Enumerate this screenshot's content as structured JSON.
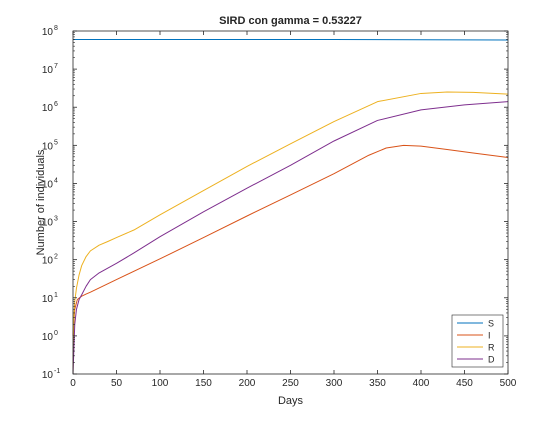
{
  "chart_data": {
    "type": "line",
    "title": "SIRD con gamma = 0.53227",
    "xlabel": "Days",
    "ylabel": "Number of individuals",
    "xlim": [
      0,
      500
    ],
    "ylim": [
      0.1,
      100000000
    ],
    "yscale": "log",
    "grid": false,
    "legend_position": "bottom-right",
    "x_ticks": [
      0,
      50,
      100,
      150,
      200,
      250,
      300,
      350,
      400,
      450,
      500
    ],
    "x_tick_labels": [
      "0",
      "50",
      "100",
      "150",
      "200",
      "250",
      "300",
      "350",
      "400",
      "450",
      "500"
    ],
    "y_ticks": [
      0.1,
      1,
      10,
      100,
      1000,
      10000,
      100000,
      1000000,
      10000000,
      100000000
    ],
    "y_tick_labels": [
      {
        "base": "10",
        "exp": "-1"
      },
      {
        "base": "10",
        "exp": "0"
      },
      {
        "base": "10",
        "exp": "1"
      },
      {
        "base": "10",
        "exp": "2"
      },
      {
        "base": "10",
        "exp": "3"
      },
      {
        "base": "10",
        "exp": "4"
      },
      {
        "base": "10",
        "exp": "5"
      },
      {
        "base": "10",
        "exp": "6"
      },
      {
        "base": "10",
        "exp": "7"
      },
      {
        "base": "10",
        "exp": "8"
      }
    ],
    "series": [
      {
        "name": "S",
        "color": "#0072BD",
        "x": [
          0,
          100,
          200,
          300,
          400,
          500
        ],
        "y": [
          60000000,
          60000000,
          60000000,
          59900000,
          59000000,
          58000000
        ]
      },
      {
        "name": "I",
        "color": "#D95319",
        "x": [
          0,
          2,
          5,
          10,
          15,
          20,
          50,
          100,
          150,
          200,
          250,
          300,
          340,
          360,
          380,
          400,
          430,
          460,
          500
        ],
        "y": [
          1,
          5,
          9,
          11,
          12.5,
          14,
          30,
          105,
          380,
          1400,
          5000,
          18000,
          55000,
          85000,
          100000,
          95000,
          78000,
          63000,
          48000
        ]
      },
      {
        "name": "R",
        "color": "#EDB120",
        "x": [
          0,
          1,
          2,
          4,
          7,
          10,
          15,
          20,
          30,
          40,
          50,
          70,
          100,
          150,
          200,
          250,
          300,
          350,
          400,
          430,
          460,
          500
        ],
        "y": [
          0.1,
          3,
          8,
          18,
          40,
          70,
          120,
          170,
          240,
          300,
          380,
          600,
          1500,
          6500,
          28000,
          110000,
          420000,
          1400000,
          2300000,
          2500000,
          2450000,
          2200000
        ]
      },
      {
        "name": "D",
        "color": "#7E2F8E",
        "x": [
          0,
          2,
          4,
          7,
          10,
          15,
          20,
          30,
          50,
          70,
          100,
          150,
          200,
          250,
          300,
          350,
          400,
          450,
          500
        ],
        "y": [
          0.1,
          2,
          5,
          9,
          12,
          20,
          30,
          45,
          80,
          150,
          400,
          1800,
          7500,
          30000,
          130000,
          450000,
          850000,
          1150000,
          1400000
        ]
      }
    ]
  }
}
